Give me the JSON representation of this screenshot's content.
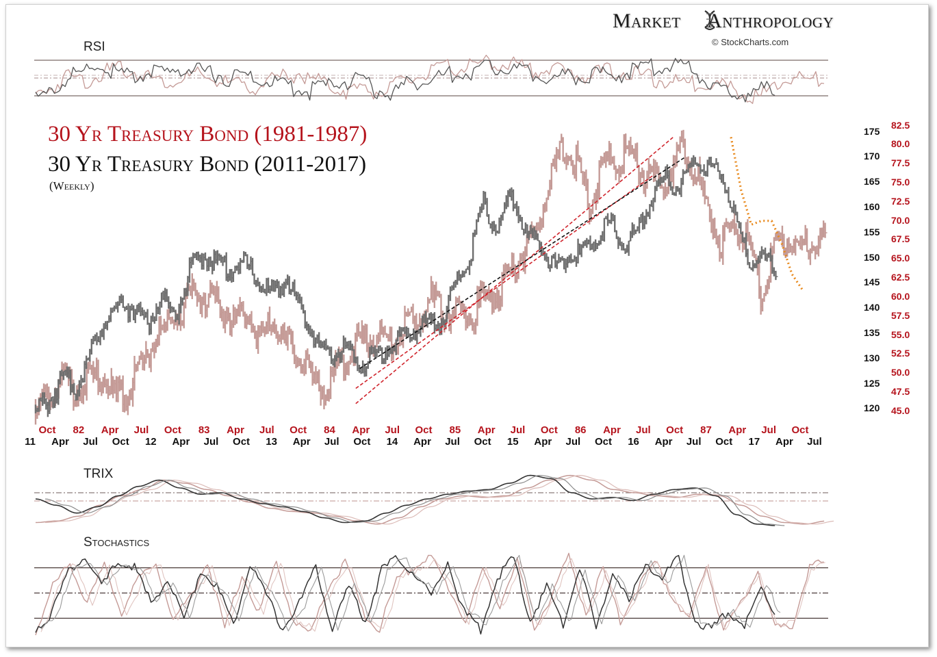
{
  "brand": {
    "left": "Market",
    "right": "Anthropology",
    "sub": "© StockCharts.com"
  },
  "titles": {
    "line1": "30 Yr Treasury Bond (1981-1987)",
    "line2": "30 Yr Treasury Bond (2011-2017)",
    "line3": "(Weekly)"
  },
  "panels": {
    "rsi": "RSI",
    "trix": "TRIX",
    "stoch": "Stochastics"
  },
  "colors": {
    "red_series": "#c49a96",
    "black_series": "#6e6e6e",
    "red_text": "#b5131c",
    "orange": "#e8891c",
    "trend_red": "#d0242c",
    "trend_black": "#111111"
  },
  "chart_data": {
    "type": "line",
    "title": "30 Yr Treasury Bond (1981-1987) vs 30 Yr Treasury Bond (2011-2017) (Weekly)",
    "y_left_ticks": [
      "175",
      "170",
      "165",
      "160",
      "155",
      "150",
      "145",
      "140",
      "135",
      "130",
      "125",
      "120"
    ],
    "y_right_ticks": [
      "82.5",
      "80.0",
      "77.5",
      "75.0",
      "72.5",
      "70.0",
      "67.5",
      "65.0",
      "62.5",
      "60.0",
      "57.5",
      "55.0",
      "52.5",
      "50.0",
      "47.5",
      "45.0"
    ],
    "ylim_left": [
      118,
      177
    ],
    "ylim_right": [
      44,
      83
    ],
    "x_top_ticks": [
      "Oct",
      "82",
      "Apr",
      "Jul",
      "Oct",
      "83",
      "Apr",
      "Jul",
      "Oct",
      "84",
      "Apr",
      "Jul",
      "Oct",
      "85",
      "Apr",
      "Jul",
      "Oct",
      "86",
      "Apr",
      "Jul",
      "Oct",
      "87",
      "Apr",
      "Jul",
      "Oct"
    ],
    "x_bottom_ticks": [
      "11",
      "Apr",
      "Jul",
      "Oct",
      "12",
      "Apr",
      "Jul",
      "Oct",
      "13",
      "Apr",
      "Jul",
      "Oct",
      "14",
      "Apr",
      "Jul",
      "Oct",
      "15",
      "Apr",
      "Jul",
      "Oct",
      "16",
      "Apr",
      "Jul",
      "Oct",
      "17",
      "Apr",
      "Jul"
    ],
    "series": [
      {
        "name": "30 Yr Treasury Bond (2011-2017)",
        "axis": "left",
        "values": [
          120.5,
          123,
          127,
          125.5,
          133,
          139,
          142,
          141,
          138,
          143,
          140,
          148,
          152,
          150,
          149,
          150,
          146,
          144,
          147,
          140,
          135,
          131,
          133,
          130,
          131,
          133,
          135,
          137,
          138,
          139,
          146,
          151,
          162,
          156,
          164,
          156,
          154,
          149,
          151,
          152,
          155,
          158,
          153,
          156,
          163,
          167,
          165,
          170,
          169,
          168,
          159,
          150,
          151,
          149
        ]
      },
      {
        "name": "30 Yr Treasury Bond (1981-1987)",
        "axis": "right",
        "values": [
          46,
          47.5,
          50.5,
          49,
          50,
          50.5,
          48,
          49,
          51.5,
          56,
          57,
          59.5,
          62,
          60.5,
          60,
          58,
          59,
          56,
          57.5,
          55,
          53,
          50,
          48.5,
          52,
          54.5,
          55.5,
          56,
          54.5,
          57,
          58,
          61,
          59.5,
          58.5,
          59,
          61,
          62,
          64,
          67,
          70,
          76,
          80.5,
          79,
          73,
          78,
          79,
          80,
          77.5,
          76,
          77,
          80.5,
          78,
          72.5,
          68.5,
          71,
          69,
          61,
          67,
          69.5,
          67,
          68.5,
          69
        ]
      }
    ],
    "annotations": [
      {
        "type": "trendline",
        "color": "red",
        "from": [
          0.405,
          46
        ],
        "to": [
          0.805,
          81
        ]
      },
      {
        "type": "trendline",
        "color": "red",
        "from": [
          0.405,
          48
        ],
        "to": [
          0.78,
          76
        ]
      },
      {
        "type": "trendline",
        "color": "black",
        "from": [
          0.41,
          128
        ],
        "to": [
          0.82,
          170
        ]
      },
      {
        "type": "projection",
        "color": "orange",
        "values": [
          81,
          74,
          69.5,
          70,
          70,
          67,
          63,
          61
        ]
      }
    ]
  },
  "rsi_data": {
    "levels": [
      70,
      50,
      30
    ],
    "black": [
      30,
      40,
      55,
      62,
      70,
      60,
      55,
      62,
      58,
      66,
      64,
      60,
      55,
      58,
      52,
      50,
      44,
      40,
      46,
      50,
      55,
      42,
      38,
      48,
      52,
      56,
      60,
      62,
      66,
      70,
      64,
      60,
      55,
      58,
      56,
      60,
      58,
      62,
      68,
      66,
      70,
      60,
      45,
      35,
      38,
      42,
      40
    ],
    "red": [
      35,
      45,
      58,
      52,
      60,
      66,
      62,
      56,
      50,
      55,
      58,
      52,
      48,
      44,
      50,
      56,
      60,
      52,
      46,
      40,
      44,
      38,
      48,
      55,
      62,
      66,
      68,
      70,
      72,
      70,
      64,
      66,
      62,
      58,
      60,
      64,
      62,
      56,
      52,
      50,
      48,
      52,
      44,
      38,
      34,
      50,
      56,
      52,
      54
    ]
  },
  "trix_data": {
    "black": [
      0.6,
      0.2,
      -0.3,
      0.1,
      0.8,
      1.4,
      1.8,
      1.3,
      0.9,
      1.0,
      0.6,
      0.3,
      0.1,
      -0.2,
      -0.6,
      -0.9,
      -0.8,
      -0.3,
      0.2,
      0.6,
      0.9,
      1.1,
      1.2,
      1.6,
      2.1,
      1.9,
      1.0,
      0.6,
      0.7,
      0.5,
      0.9,
      1.2,
      1.3,
      0.8,
      -0.4,
      -1.0,
      -1.1
    ],
    "red": [
      -0.9,
      -0.8,
      -0.5,
      0.2,
      0.8,
      1.2,
      1.8,
      1.6,
      1.2,
      0.8,
      0.4,
      0.0,
      -0.2,
      -0.3,
      -0.5,
      -0.8,
      -1.0,
      -0.6,
      0.1,
      0.6,
      0.8,
      0.7,
      0.8,
      1.3,
      1.8,
      2.1,
      1.8,
      1.2,
      1.0,
      0.8,
      0.7,
      0.9,
      0.8,
      0.2,
      -0.5,
      -0.9,
      -1.0,
      -0.8
    ]
  },
  "stoch_data": {
    "levels": [
      80,
      50,
      20
    ],
    "black": [
      10,
      30,
      80,
      95,
      60,
      90,
      85,
      40,
      70,
      20,
      80,
      60,
      15,
      90,
      50,
      10,
      40,
      85,
      10,
      60,
      20,
      80,
      95,
      75,
      50,
      90,
      30,
      10,
      70,
      95,
      20,
      60,
      15,
      85,
      10,
      80,
      40,
      90,
      70,
      95,
      20,
      10,
      30,
      15,
      60,
      25
    ],
    "red": [
      5,
      60,
      90,
      40,
      85,
      30,
      70,
      90,
      20,
      50,
      90,
      10,
      75,
      30,
      90,
      20,
      5,
      60,
      90,
      30,
      10,
      70,
      85,
      95,
      60,
      20,
      80,
      40,
      90,
      10,
      50,
      95,
      30,
      80,
      20,
      60,
      90,
      50,
      20,
      85,
      10,
      40,
      80,
      10,
      15,
      85,
      90
    ]
  }
}
